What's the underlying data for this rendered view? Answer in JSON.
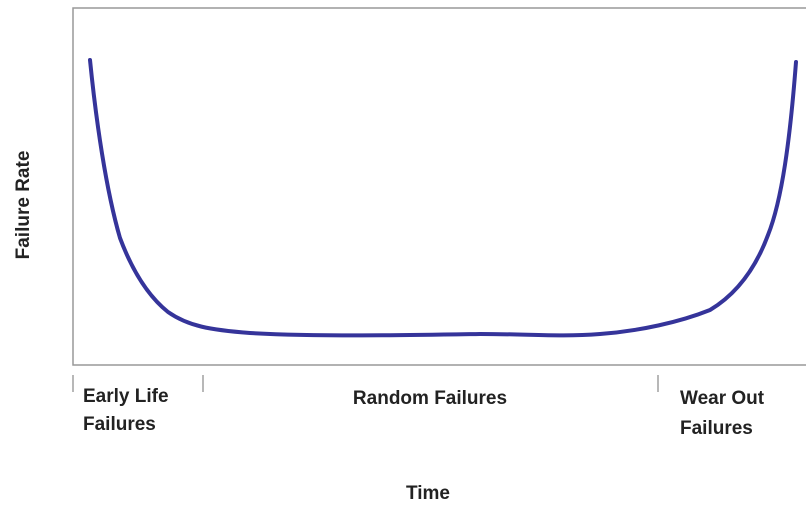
{
  "y_axis_label": "Failure Rate",
  "x_axis_label": "Time",
  "regions": [
    {
      "lines": [
        "Early Life",
        "Failures"
      ]
    },
    {
      "lines": [
        "Random Failures"
      ]
    },
    {
      "lines": [
        "Wear Out",
        "Failures"
      ]
    }
  ]
}
